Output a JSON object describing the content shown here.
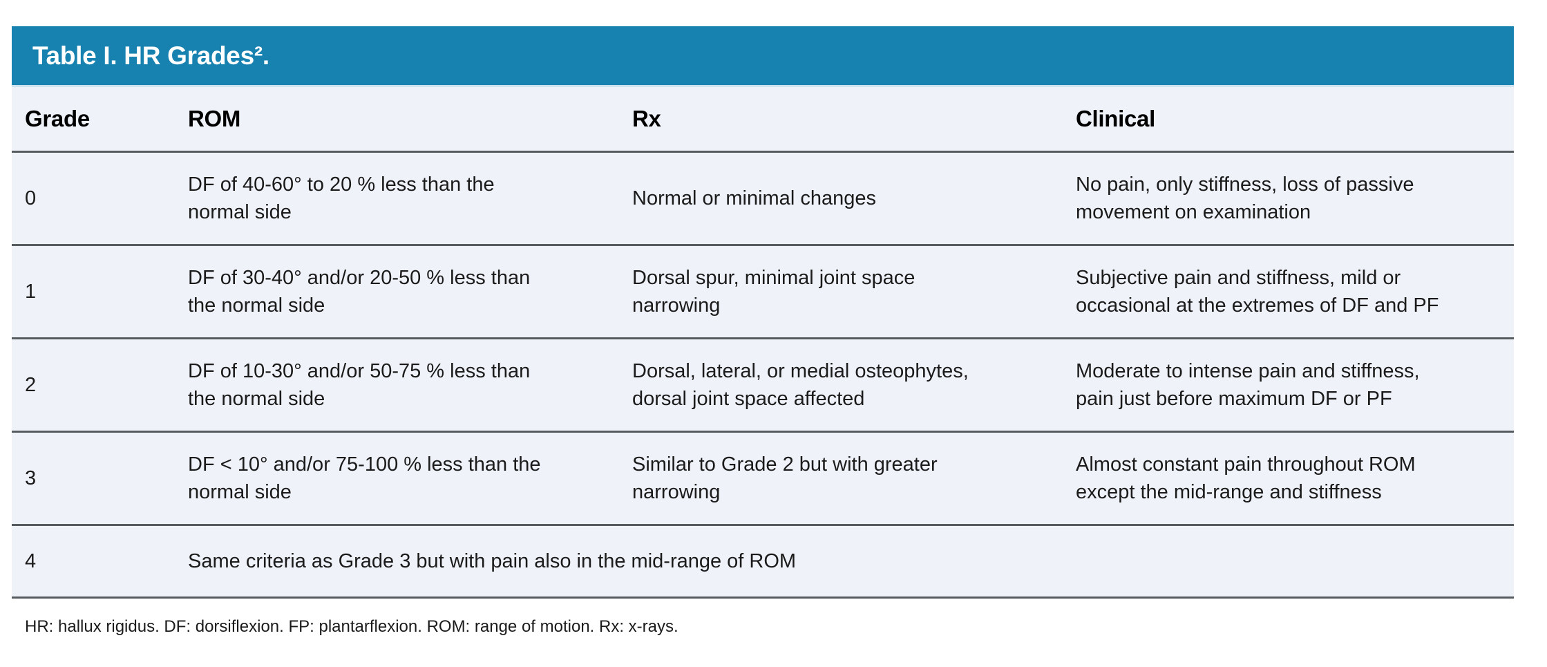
{
  "table": {
    "title": "Table I. HR Grades².",
    "columns": [
      "Grade",
      "ROM",
      "Rx",
      "Clinical"
    ],
    "rows": [
      {
        "grade": "0",
        "rom": [
          "DF of 40-60° to 20 % less than the",
          "normal side"
        ],
        "rx": [
          "Normal or minimal changes"
        ],
        "clinical": [
          "No pain, only stiffness, loss of passive",
          "movement on examination"
        ]
      },
      {
        "grade": "1",
        "rom": [
          "DF of 30-40° and/or 20-50 % less than",
          "the normal side"
        ],
        "rx": [
          "Dorsal spur, minimal joint space",
          "narrowing"
        ],
        "clinical": [
          "Subjective pain and stiffness, mild or",
          "occasional at the extremes of DF and PF"
        ]
      },
      {
        "grade": "2",
        "rom": [
          "DF of 10-30° and/or 50-75 % less than",
          "the normal side"
        ],
        "rx": [
          "Dorsal, lateral, or medial osteophytes,",
          "dorsal joint space affected"
        ],
        "clinical": [
          "Moderate to intense pain and stiffness,",
          "pain just before maximum DF or PF"
        ]
      },
      {
        "grade": "3",
        "rom": [
          "DF < 10° and/or 75-100 % less than the",
          "normal side"
        ],
        "rx": [
          "Similar to Grade 2 but with greater",
          "narrowing"
        ],
        "clinical": [
          "Almost constant pain throughout ROM",
          "except the mid-range and stiffness"
        ]
      }
    ],
    "span_row": {
      "grade": "4",
      "text": "Same criteria as Grade 3 but with pain also in the mid-range of ROM"
    },
    "footnote": "HR: hallux rigidus. DF: dorsiflexion. FP: plantarflexion. ROM: range of motion. Rx: x-rays.",
    "colors": {
      "header_bar": "#1781B0",
      "table_bg": "#EFF2F9",
      "divider": "#565B5F",
      "title_text": "#FFFFFF",
      "body_text": "#1B1B1B"
    }
  }
}
